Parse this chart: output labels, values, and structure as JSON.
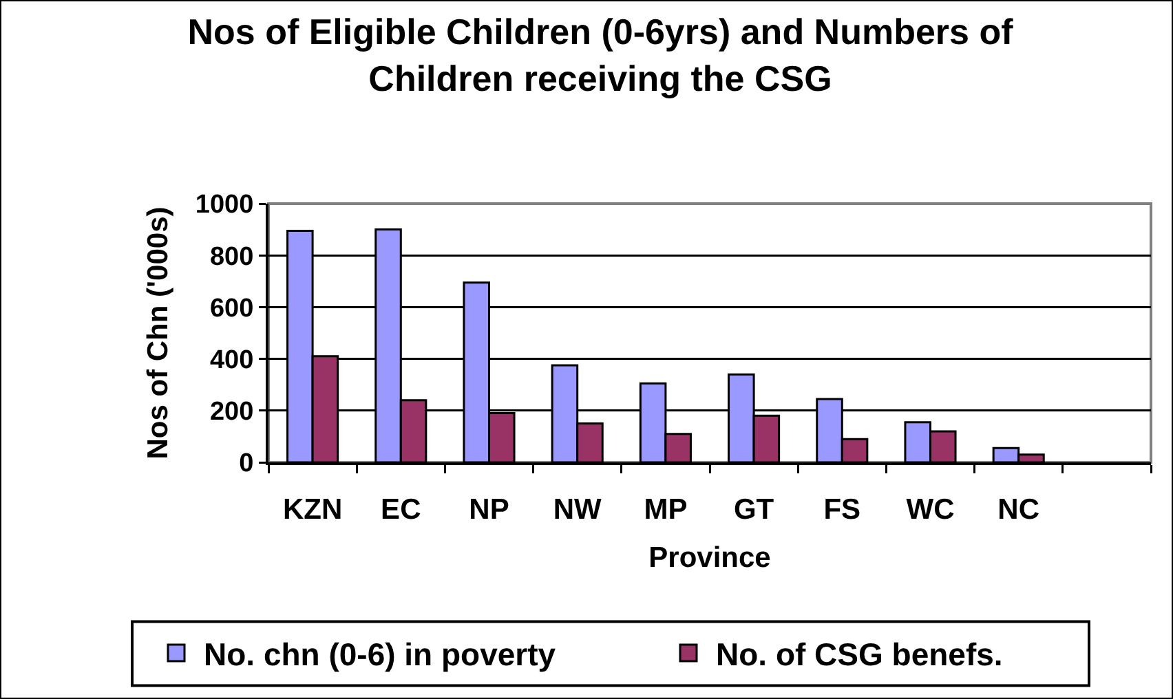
{
  "chart_data": {
    "type": "bar",
    "title": "Nos of Eligible Children (0-6yrs) and Numbers of Children receiving the CSG",
    "xlabel": "Province",
    "ylabel": "Nos of Chn ('000s)",
    "categories": [
      "KZN",
      "EC",
      "NP",
      "NW",
      "MP",
      "GT",
      "FS",
      "WC",
      "NC",
      null
    ],
    "series": [
      {
        "name": "No. chn (0-6) in poverty",
        "color": "#9999ff",
        "values": [
          895,
          900,
          695,
          375,
          305,
          340,
          245,
          155,
          55,
          null
        ]
      },
      {
        "name": "No. of CSG benefs.",
        "color": "#993366",
        "values": [
          410,
          240,
          190,
          150,
          110,
          180,
          90,
          120,
          30,
          null
        ]
      }
    ],
    "ylim": [
      0,
      1000
    ],
    "yticks": [
      0,
      200,
      400,
      600,
      800,
      1000
    ],
    "grid": "y",
    "legend": "bottom"
  }
}
